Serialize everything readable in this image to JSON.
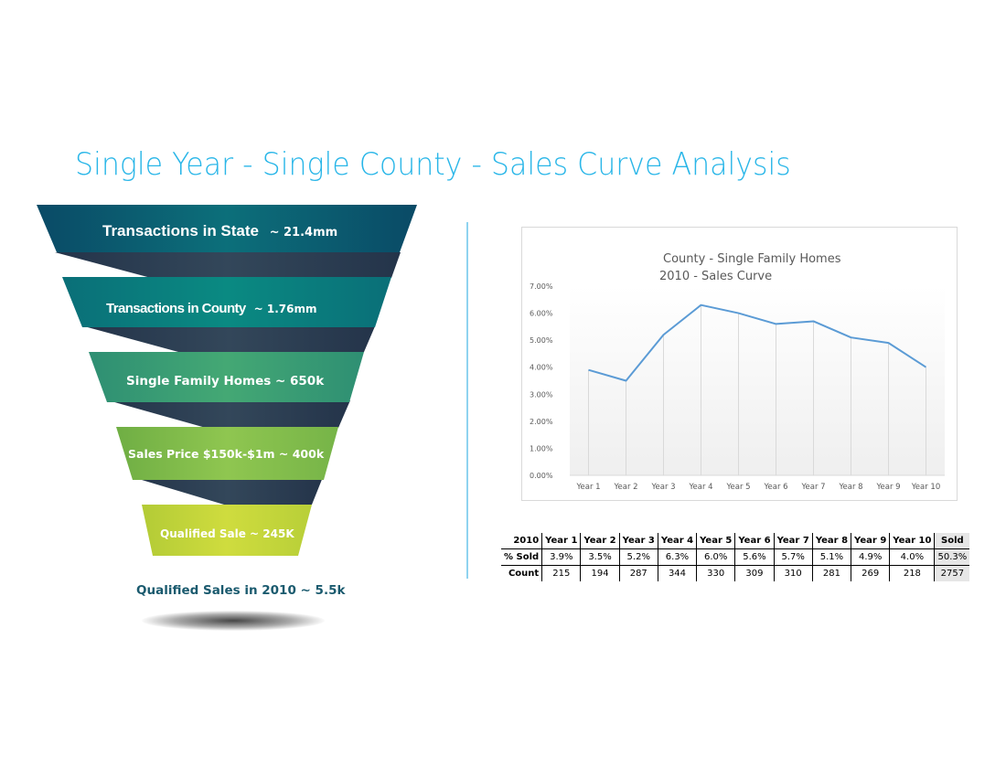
{
  "page": {
    "title": "Single Year - Single County - Sales Curve Analysis",
    "accent_color": "#29b6e8"
  },
  "funnel": {
    "stages": [
      {
        "label": "Transactions in State",
        "value": "~ 21.4mm",
        "color": "#0b5a73"
      },
      {
        "label": "Transactions in County",
        "value": "~ 1.76mm",
        "color": "#0b8580"
      },
      {
        "label": "Single Family Homes ~ 650k",
        "value": "",
        "color": "#3a9e72"
      },
      {
        "label": "Sales Price $150k-$1m ~ 400k",
        "value": "",
        "color": "#86c04a"
      },
      {
        "label": "Qualified Sale ~ 245K",
        "value": "",
        "color": "#c5d63a"
      }
    ],
    "result_label": "Qualified Sales in 2010 ~ 5.5k",
    "connector_color": "#2b3d52"
  },
  "chart_data": {
    "type": "line",
    "title": "County - Single Family Homes",
    "subtitle": "2010 - Sales Curve",
    "categories": [
      "Year 1",
      "Year 2",
      "Year 3",
      "Year 4",
      "Year 5",
      "Year 6",
      "Year 7",
      "Year 8",
      "Year 9",
      "Year 10"
    ],
    "series": [
      {
        "name": "% Sold",
        "values": [
          3.9,
          3.5,
          5.2,
          6.3,
          6.0,
          5.6,
          5.7,
          5.1,
          4.9,
          4.0
        ],
        "color": "#5b9bd5"
      }
    ],
    "yticks": [
      "0.00%",
      "1.00%",
      "2.00%",
      "3.00%",
      "4.00%",
      "5.00%",
      "6.00%",
      "7.00%"
    ],
    "xlabel": "",
    "ylabel": "",
    "ylim": [
      0,
      7
    ],
    "grid": "vertical drop lines",
    "legend": "none"
  },
  "table": {
    "headers": [
      "2010",
      "Year 1",
      "Year 2",
      "Year 3",
      "Year 4",
      "Year 5",
      "Year 6",
      "Year 7",
      "Year 8",
      "Year 9",
      "Year 10",
      "Sold"
    ],
    "rows": [
      {
        "label": "% Sold",
        "cells": [
          "3.9%",
          "3.5%",
          "5.2%",
          "6.3%",
          "6.0%",
          "5.6%",
          "5.7%",
          "5.1%",
          "4.9%",
          "4.0%",
          "50.3%"
        ]
      },
      {
        "label": "Count",
        "cells": [
          "215",
          "194",
          "287",
          "344",
          "330",
          "309",
          "310",
          "281",
          "269",
          "218",
          "2757"
        ]
      }
    ]
  }
}
